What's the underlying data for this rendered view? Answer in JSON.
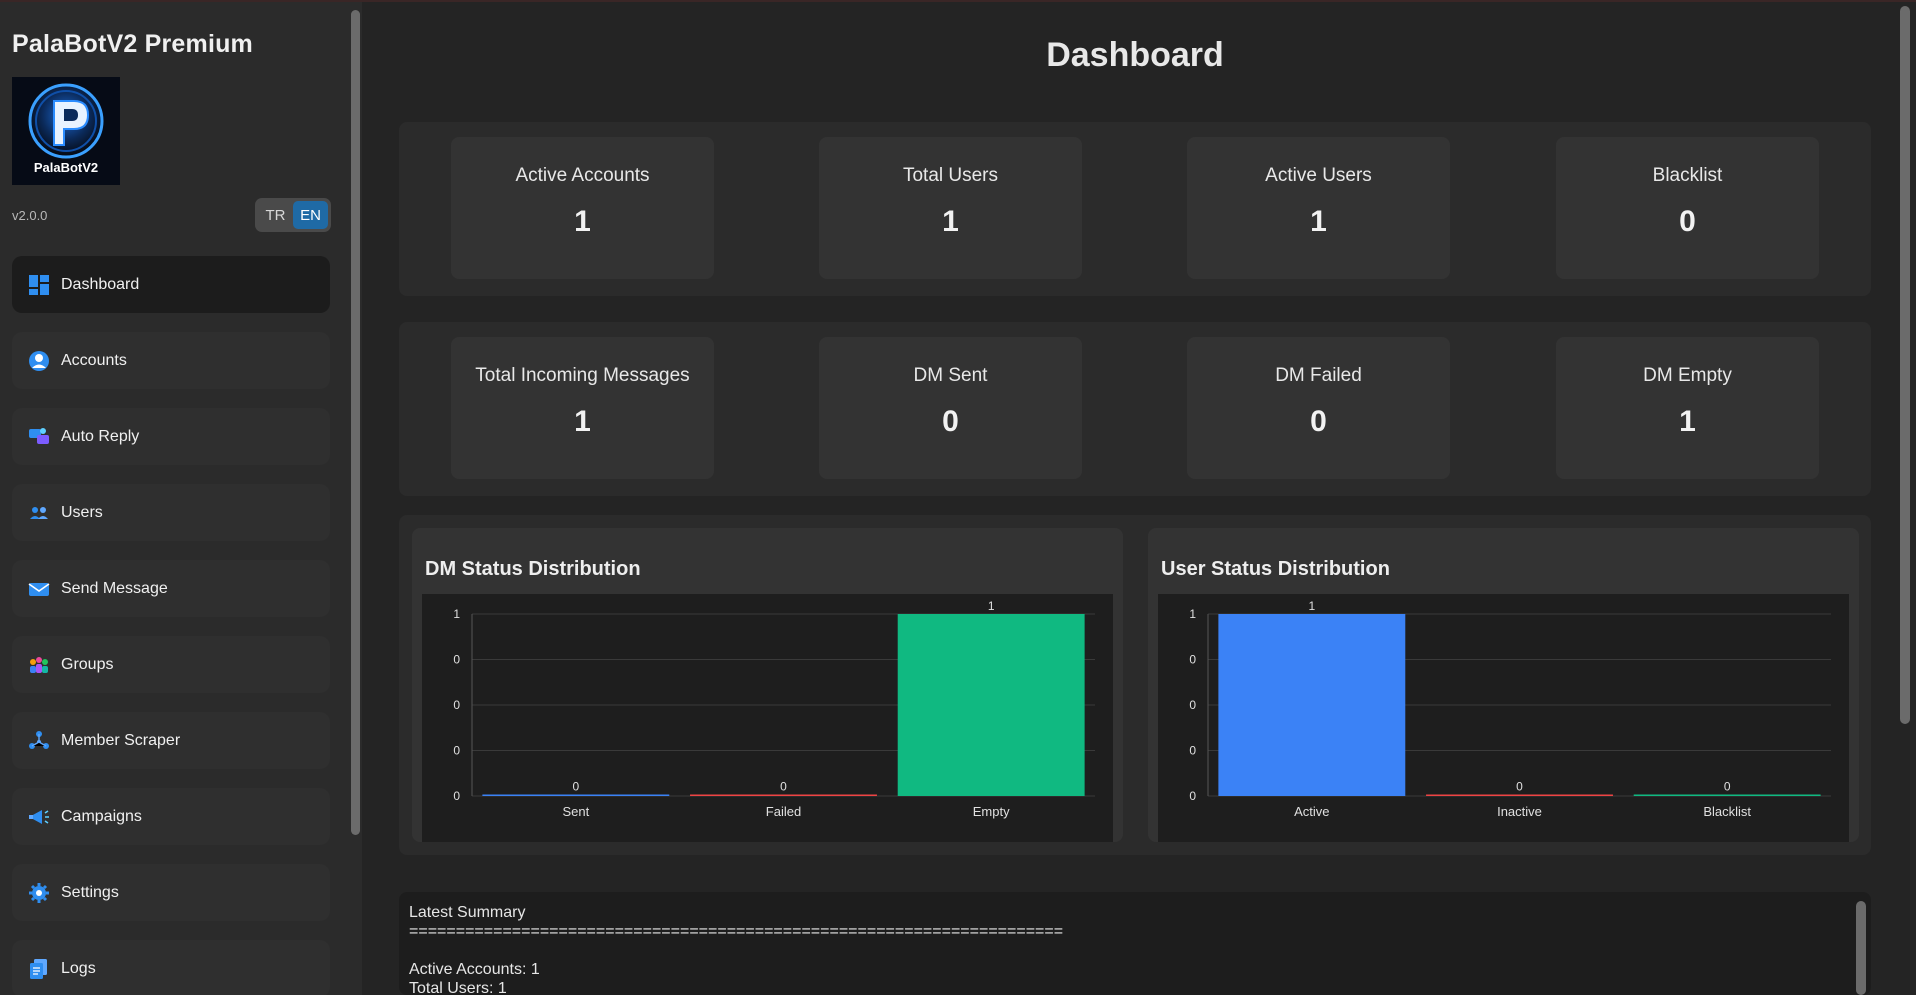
{
  "app": {
    "title": "PalaBotV2 Premium",
    "version": "v2.0.0",
    "logo_text": "PalaBotV2",
    "languages": [
      "TR",
      "EN"
    ],
    "active_language": "EN"
  },
  "sidebar": {
    "items": [
      {
        "label": "Dashboard",
        "icon": "dashboard-icon",
        "active": true
      },
      {
        "label": "Accounts",
        "icon": "user-circle-icon",
        "active": false
      },
      {
        "label": "Auto Reply",
        "icon": "chat-bubbles-icon",
        "active": false
      },
      {
        "label": "Users",
        "icon": "users-icon",
        "active": false
      },
      {
        "label": "Send Message",
        "icon": "envelope-icon",
        "active": false
      },
      {
        "label": "Groups",
        "icon": "groups-icon",
        "active": false
      },
      {
        "label": "Member Scraper",
        "icon": "network-icon",
        "active": false
      },
      {
        "label": "Campaigns",
        "icon": "megaphone-icon",
        "active": false
      },
      {
        "label": "Settings",
        "icon": "gear-icon",
        "active": false
      },
      {
        "label": "Logs",
        "icon": "documents-icon",
        "active": false
      }
    ]
  },
  "main": {
    "title": "Dashboard",
    "stats_row1": [
      {
        "label": "Active Accounts",
        "value": "1"
      },
      {
        "label": "Total Users",
        "value": "1"
      },
      {
        "label": "Active Users",
        "value": "1"
      },
      {
        "label": "Blacklist",
        "value": "0"
      }
    ],
    "stats_row2": [
      {
        "label": "Total Incoming Messages",
        "value": "1"
      },
      {
        "label": "DM Sent",
        "value": "0"
      },
      {
        "label": "DM Failed",
        "value": "0"
      },
      {
        "label": "DM Empty",
        "value": "1"
      }
    ],
    "summary": {
      "lines": [
        "Latest Summary",
        "======================================================================",
        "",
        "Active Accounts: 1",
        "Total Users: 1"
      ]
    }
  },
  "colors": {
    "accent": "#1f6aa5",
    "blue": "#3b82f6",
    "red": "#ef4444",
    "green": "#10b981"
  },
  "chart_data": [
    {
      "type": "bar",
      "title": "DM Status Distribution",
      "categories": [
        "Sent",
        "Failed",
        "Empty"
      ],
      "values": [
        0,
        0,
        1
      ],
      "colors": [
        "#3b82f6",
        "#ef4444",
        "#10b981"
      ],
      "ylim": [
        0,
        1
      ],
      "yticks": [
        "0",
        "0",
        "0",
        "0",
        "1"
      ],
      "data_labels": [
        "0",
        "0",
        "1"
      ],
      "grid": true,
      "xlabel": "",
      "ylabel": ""
    },
    {
      "type": "bar",
      "title": "User Status Distribution",
      "categories": [
        "Active",
        "Inactive",
        "Blacklist"
      ],
      "values": [
        1,
        0,
        0
      ],
      "colors": [
        "#3b82f6",
        "#ef4444",
        "#10b981"
      ],
      "ylim": [
        0,
        1
      ],
      "yticks": [
        "0",
        "0",
        "0",
        "0",
        "1"
      ],
      "data_labels": [
        "1",
        "0",
        "0"
      ],
      "grid": true,
      "xlabel": "",
      "ylabel": ""
    }
  ]
}
